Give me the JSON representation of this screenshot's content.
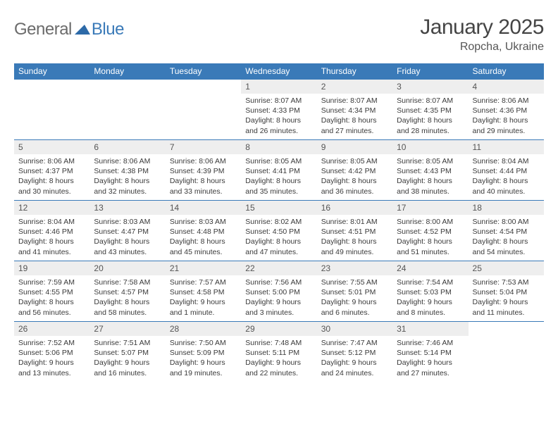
{
  "logo": {
    "general": "General",
    "blue": "Blue"
  },
  "title": "January 2025",
  "location": "Ropcha, Ukraine",
  "colors": {
    "header_bg": "#3a7ab8",
    "header_text": "#ffffff",
    "daynum_bg": "#eeeeee",
    "border": "#3a7ab8",
    "logo_gray": "#6b6b6b",
    "logo_blue": "#3a7ab8",
    "body_text": "#323232"
  },
  "fonts": {
    "title_size": 30,
    "location_size": 16,
    "th_size": 12,
    "cell_size": 10.5
  },
  "day_headers": [
    "Sunday",
    "Monday",
    "Tuesday",
    "Wednesday",
    "Thursday",
    "Friday",
    "Saturday"
  ],
  "weeks": [
    [
      {
        "n": "",
        "sr": "",
        "ss": "",
        "d1": "",
        "d2": ""
      },
      {
        "n": "",
        "sr": "",
        "ss": "",
        "d1": "",
        "d2": ""
      },
      {
        "n": "",
        "sr": "",
        "ss": "",
        "d1": "",
        "d2": ""
      },
      {
        "n": "1",
        "sr": "Sunrise: 8:07 AM",
        "ss": "Sunset: 4:33 PM",
        "d1": "Daylight: 8 hours",
        "d2": "and 26 minutes."
      },
      {
        "n": "2",
        "sr": "Sunrise: 8:07 AM",
        "ss": "Sunset: 4:34 PM",
        "d1": "Daylight: 8 hours",
        "d2": "and 27 minutes."
      },
      {
        "n": "3",
        "sr": "Sunrise: 8:07 AM",
        "ss": "Sunset: 4:35 PM",
        "d1": "Daylight: 8 hours",
        "d2": "and 28 minutes."
      },
      {
        "n": "4",
        "sr": "Sunrise: 8:06 AM",
        "ss": "Sunset: 4:36 PM",
        "d1": "Daylight: 8 hours",
        "d2": "and 29 minutes."
      }
    ],
    [
      {
        "n": "5",
        "sr": "Sunrise: 8:06 AM",
        "ss": "Sunset: 4:37 PM",
        "d1": "Daylight: 8 hours",
        "d2": "and 30 minutes."
      },
      {
        "n": "6",
        "sr": "Sunrise: 8:06 AM",
        "ss": "Sunset: 4:38 PM",
        "d1": "Daylight: 8 hours",
        "d2": "and 32 minutes."
      },
      {
        "n": "7",
        "sr": "Sunrise: 8:06 AM",
        "ss": "Sunset: 4:39 PM",
        "d1": "Daylight: 8 hours",
        "d2": "and 33 minutes."
      },
      {
        "n": "8",
        "sr": "Sunrise: 8:05 AM",
        "ss": "Sunset: 4:41 PM",
        "d1": "Daylight: 8 hours",
        "d2": "and 35 minutes."
      },
      {
        "n": "9",
        "sr": "Sunrise: 8:05 AM",
        "ss": "Sunset: 4:42 PM",
        "d1": "Daylight: 8 hours",
        "d2": "and 36 minutes."
      },
      {
        "n": "10",
        "sr": "Sunrise: 8:05 AM",
        "ss": "Sunset: 4:43 PM",
        "d1": "Daylight: 8 hours",
        "d2": "and 38 minutes."
      },
      {
        "n": "11",
        "sr": "Sunrise: 8:04 AM",
        "ss": "Sunset: 4:44 PM",
        "d1": "Daylight: 8 hours",
        "d2": "and 40 minutes."
      }
    ],
    [
      {
        "n": "12",
        "sr": "Sunrise: 8:04 AM",
        "ss": "Sunset: 4:46 PM",
        "d1": "Daylight: 8 hours",
        "d2": "and 41 minutes."
      },
      {
        "n": "13",
        "sr": "Sunrise: 8:03 AM",
        "ss": "Sunset: 4:47 PM",
        "d1": "Daylight: 8 hours",
        "d2": "and 43 minutes."
      },
      {
        "n": "14",
        "sr": "Sunrise: 8:03 AM",
        "ss": "Sunset: 4:48 PM",
        "d1": "Daylight: 8 hours",
        "d2": "and 45 minutes."
      },
      {
        "n": "15",
        "sr": "Sunrise: 8:02 AM",
        "ss": "Sunset: 4:50 PM",
        "d1": "Daylight: 8 hours",
        "d2": "and 47 minutes."
      },
      {
        "n": "16",
        "sr": "Sunrise: 8:01 AM",
        "ss": "Sunset: 4:51 PM",
        "d1": "Daylight: 8 hours",
        "d2": "and 49 minutes."
      },
      {
        "n": "17",
        "sr": "Sunrise: 8:00 AM",
        "ss": "Sunset: 4:52 PM",
        "d1": "Daylight: 8 hours",
        "d2": "and 51 minutes."
      },
      {
        "n": "18",
        "sr": "Sunrise: 8:00 AM",
        "ss": "Sunset: 4:54 PM",
        "d1": "Daylight: 8 hours",
        "d2": "and 54 minutes."
      }
    ],
    [
      {
        "n": "19",
        "sr": "Sunrise: 7:59 AM",
        "ss": "Sunset: 4:55 PM",
        "d1": "Daylight: 8 hours",
        "d2": "and 56 minutes."
      },
      {
        "n": "20",
        "sr": "Sunrise: 7:58 AM",
        "ss": "Sunset: 4:57 PM",
        "d1": "Daylight: 8 hours",
        "d2": "and 58 minutes."
      },
      {
        "n": "21",
        "sr": "Sunrise: 7:57 AM",
        "ss": "Sunset: 4:58 PM",
        "d1": "Daylight: 9 hours",
        "d2": "and 1 minute."
      },
      {
        "n": "22",
        "sr": "Sunrise: 7:56 AM",
        "ss": "Sunset: 5:00 PM",
        "d1": "Daylight: 9 hours",
        "d2": "and 3 minutes."
      },
      {
        "n": "23",
        "sr": "Sunrise: 7:55 AM",
        "ss": "Sunset: 5:01 PM",
        "d1": "Daylight: 9 hours",
        "d2": "and 6 minutes."
      },
      {
        "n": "24",
        "sr": "Sunrise: 7:54 AM",
        "ss": "Sunset: 5:03 PM",
        "d1": "Daylight: 9 hours",
        "d2": "and 8 minutes."
      },
      {
        "n": "25",
        "sr": "Sunrise: 7:53 AM",
        "ss": "Sunset: 5:04 PM",
        "d1": "Daylight: 9 hours",
        "d2": "and 11 minutes."
      }
    ],
    [
      {
        "n": "26",
        "sr": "Sunrise: 7:52 AM",
        "ss": "Sunset: 5:06 PM",
        "d1": "Daylight: 9 hours",
        "d2": "and 13 minutes."
      },
      {
        "n": "27",
        "sr": "Sunrise: 7:51 AM",
        "ss": "Sunset: 5:07 PM",
        "d1": "Daylight: 9 hours",
        "d2": "and 16 minutes."
      },
      {
        "n": "28",
        "sr": "Sunrise: 7:50 AM",
        "ss": "Sunset: 5:09 PM",
        "d1": "Daylight: 9 hours",
        "d2": "and 19 minutes."
      },
      {
        "n": "29",
        "sr": "Sunrise: 7:48 AM",
        "ss": "Sunset: 5:11 PM",
        "d1": "Daylight: 9 hours",
        "d2": "and 22 minutes."
      },
      {
        "n": "30",
        "sr": "Sunrise: 7:47 AM",
        "ss": "Sunset: 5:12 PM",
        "d1": "Daylight: 9 hours",
        "d2": "and 24 minutes."
      },
      {
        "n": "31",
        "sr": "Sunrise: 7:46 AM",
        "ss": "Sunset: 5:14 PM",
        "d1": "Daylight: 9 hours",
        "d2": "and 27 minutes."
      },
      {
        "n": "",
        "sr": "",
        "ss": "",
        "d1": "",
        "d2": ""
      }
    ]
  ]
}
